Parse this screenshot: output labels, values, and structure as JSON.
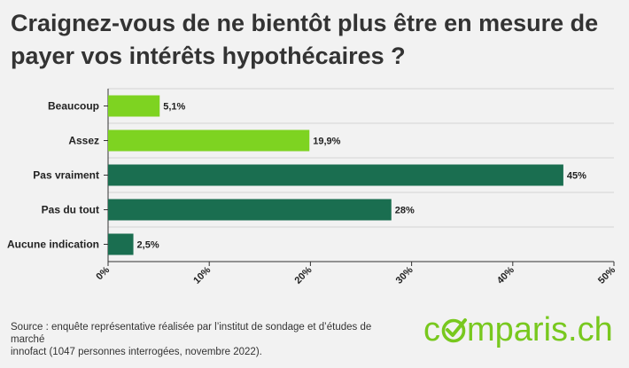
{
  "title": "Craignez-vous de ne bientôt plus être en mesure de payer vos intérêts hypothécaires ?",
  "source": {
    "line1": "Source : enquête représentative réalisée par l’institut de sondage et d’études de marché",
    "line2": "innofact (1047 personnes interrogées, novembre 2022)."
  },
  "logo": {
    "text_before": "c",
    "text_after": "mparis.ch",
    "color": "#78c81e"
  },
  "chart_data": {
    "type": "bar",
    "orientation": "horizontal",
    "categories": [
      "Beaucoup",
      "Assez",
      "Pas vraiment",
      "Pas du tout",
      "Aucune indication"
    ],
    "values": [
      5.1,
      19.9,
      45,
      28,
      2.5
    ],
    "value_labels": [
      "5,1%",
      "19,9%",
      "45%",
      "28%",
      "2,5%"
    ],
    "bar_colors": [
      "#7ed321",
      "#7ed321",
      "#1a6e50",
      "#1a6e50",
      "#1a6e50"
    ],
    "xlim": [
      0,
      50
    ],
    "x_ticks": [
      0,
      10,
      20,
      30,
      40,
      50
    ],
    "x_tick_labels": [
      "0%",
      "10%",
      "20%",
      "30%",
      "40%",
      "50%"
    ],
    "grid": true
  }
}
